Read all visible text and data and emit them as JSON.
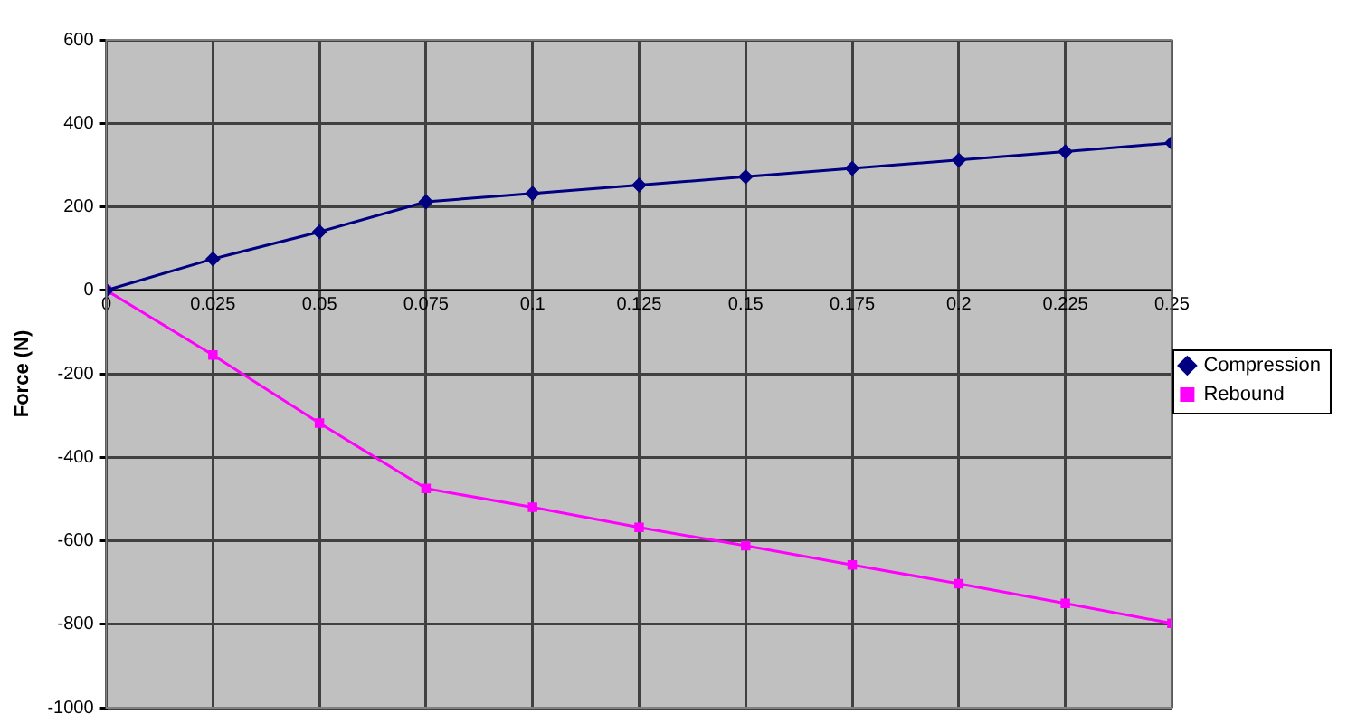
{
  "chart_data": {
    "type": "line",
    "ylabel": "Force (N)",
    "x": [
      0,
      0.025,
      0.05,
      0.075,
      0.1,
      0.125,
      0.15,
      0.175,
      0.2,
      0.225,
      0.25
    ],
    "series": [
      {
        "name": "Compression",
        "color": "#000080",
        "marker": "diamond",
        "values": [
          0,
          75,
          140,
          212,
          232,
          252,
          272,
          292,
          312,
          332,
          353
        ]
      },
      {
        "name": "Rebound",
        "color": "#ff00ff",
        "marker": "square",
        "values": [
          0,
          -155,
          -318,
          -475,
          -520,
          -568,
          -612,
          -658,
          -703,
          -750,
          -798
        ]
      }
    ],
    "xlim": [
      0,
      0.25
    ],
    "xticks": [
      0,
      0.025,
      0.05,
      0.075,
      0.1,
      0.125,
      0.15,
      0.175,
      0.2,
      0.225,
      0.25
    ],
    "ylim": [
      -1000,
      600
    ],
    "yticks": [
      -1000,
      -800,
      -600,
      -400,
      -200,
      0,
      200,
      400,
      600
    ],
    "grid": true,
    "legend": "right",
    "line_style": "solid"
  }
}
